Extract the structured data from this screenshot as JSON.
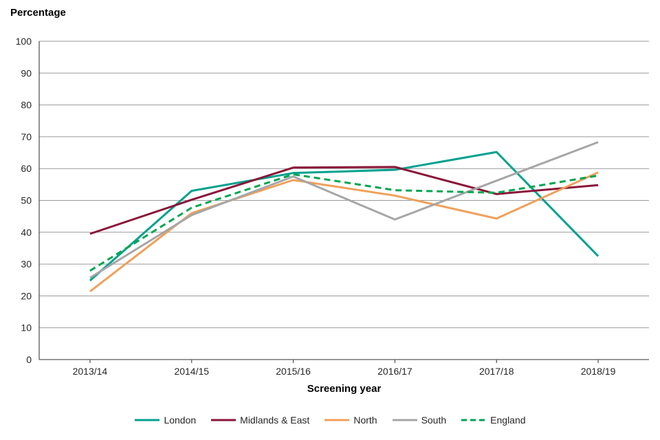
{
  "chart_data": {
    "type": "line",
    "title": "Percentage",
    "xlabel": "Screening year",
    "ylabel": "Percentage",
    "categories": [
      "2013/14",
      "2014/15",
      "2015/16",
      "2016/17",
      "2017/18",
      "2018/19"
    ],
    "ylim": [
      0,
      100
    ],
    "ytick_step": 10,
    "grid": "horizontal",
    "legend_position": "bottom",
    "series": [
      {
        "name": "London",
        "color": "#00A18F",
        "dash": "solid",
        "values": [
          24.8,
          53.0,
          58.6,
          59.6,
          65.2,
          32.5
        ]
      },
      {
        "name": "Midlands & East",
        "color": "#8A1538",
        "dash": "solid",
        "values": [
          39.5,
          50.2,
          60.3,
          60.5,
          52.0,
          54.8
        ]
      },
      {
        "name": "North",
        "color": "#F0A05A",
        "dash": "solid",
        "values": [
          21.4,
          46.0,
          56.4,
          51.5,
          44.3,
          58.8
        ]
      },
      {
        "name": "South",
        "color": "#A6A6A6",
        "dash": "solid",
        "values": [
          25.7,
          45.4,
          57.5,
          44.0,
          56.2,
          68.3
        ]
      },
      {
        "name": "England",
        "color": "#00A551",
        "dash": "dashed",
        "values": [
          27.9,
          47.7,
          58.2,
          53.2,
          52.4,
          57.8
        ]
      }
    ],
    "colors": {
      "grid_line": "#9A9A9A",
      "axis_line": "#595959",
      "tick_label": "#262626",
      "title_text": "#000000"
    }
  }
}
